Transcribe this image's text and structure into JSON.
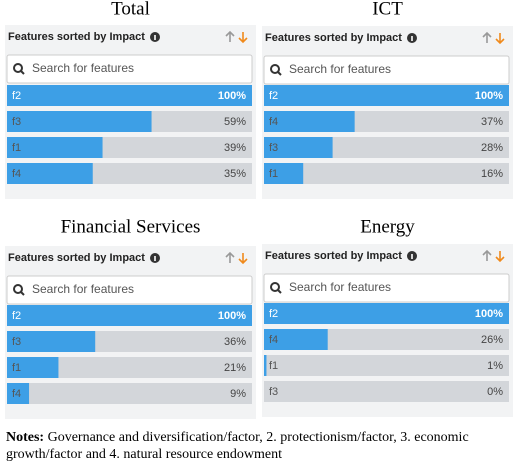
{
  "chart_data": [
    {
      "type": "bar",
      "orientation": "horizontal",
      "title": "Total",
      "subtitle": "Features sorted by Impact",
      "search_placeholder": "Search for features",
      "categories": [
        "f2",
        "f3",
        "f1",
        "f4"
      ],
      "values": [
        100,
        59,
        39,
        35
      ],
      "value_labels": [
        "100%",
        "59%",
        "39%",
        "35%"
      ],
      "color": "#3d9fe6",
      "xlim": [
        0,
        100
      ]
    },
    {
      "type": "bar",
      "orientation": "horizontal",
      "title": "ICT",
      "subtitle": "Features sorted by Impact",
      "search_placeholder": "Search for features",
      "categories": [
        "f2",
        "f4",
        "f3",
        "f1"
      ],
      "values": [
        100,
        37,
        28,
        16
      ],
      "value_labels": [
        "100%",
        "37%",
        "28%",
        "16%"
      ],
      "color": "#3d9fe6",
      "xlim": [
        0,
        100
      ]
    },
    {
      "type": "bar",
      "orientation": "horizontal",
      "title": "Financial Services",
      "subtitle": "Features sorted by Impact",
      "search_placeholder": "Search for features",
      "categories": [
        "f2",
        "f3",
        "f1",
        "f4"
      ],
      "values": [
        100,
        36,
        21,
        9
      ],
      "value_labels": [
        "100%",
        "36%",
        "21%",
        "9%"
      ],
      "color": "#3d9fe6",
      "xlim": [
        0,
        100
      ]
    },
    {
      "type": "bar",
      "orientation": "horizontal",
      "title": "Energy",
      "subtitle": "Features sorted by Impact",
      "search_placeholder": "Search for features",
      "categories": [
        "f2",
        "f4",
        "f1",
        "f3"
      ],
      "values": [
        100,
        26,
        1,
        0
      ],
      "value_labels": [
        "100%",
        "26%",
        "1%",
        "0%"
      ],
      "color": "#3d9fe6",
      "xlim": [
        0,
        100
      ]
    }
  ],
  "notes": {
    "label": "Notes:",
    "text": "Governance and diversification/factor, 2. protectionism/factor, 3. economic growth/factor and 4. natural resource endowment"
  }
}
